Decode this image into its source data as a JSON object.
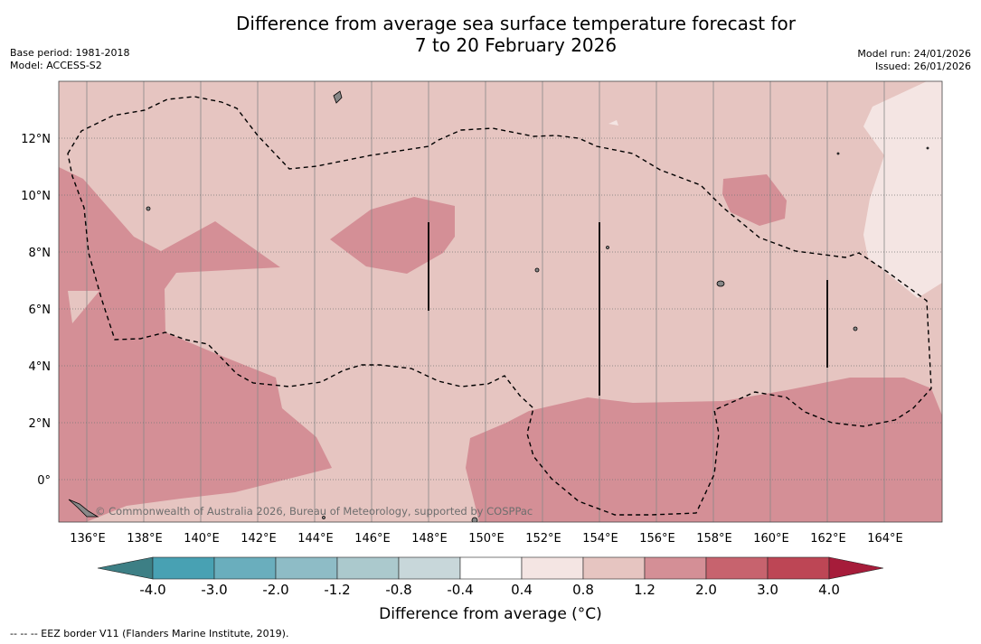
{
  "header": {
    "title_line1": "Difference from average sea surface temperature forecast for",
    "title_line2": "7 to 20 February 2026",
    "base_period": "Base period: 1981-2018",
    "model": "Model: ACCESS-S2",
    "model_run": "Model run: 24/01/2026",
    "issued": "Issued: 26/01/2026"
  },
  "map": {
    "lat_labels": [
      "12°N",
      "10°N",
      "8°N",
      "6°N",
      "4°N",
      "2°N",
      "0°"
    ],
    "lon_labels": [
      "136°E",
      "138°E",
      "140°E",
      "142°E",
      "144°E",
      "146°E",
      "148°E",
      "150°E",
      "152°E",
      "154°E",
      "156°E",
      "158°E",
      "160°E",
      "162°E",
      "164°E"
    ],
    "credit": "© Commonwealth of Australia 2026, Bureau of Meteorology, supported by COSPPac"
  },
  "colorbar": {
    "tick_labels": [
      "-4.0",
      "-3.0",
      "-2.0",
      "-1.2",
      "-0.8",
      "-0.4",
      "0.4",
      "0.8",
      "1.2",
      "2.0",
      "3.0",
      "4.0"
    ],
    "colors": [
      "#48a1b3",
      "#6aaebd",
      "#8ebcc6",
      "#abc9cd",
      "#c8d7da",
      "#ffffff",
      "#f4e5e3",
      "#e6c5c1",
      "#d48f96",
      "#c7636e",
      "#bd4655"
    ],
    "extend_low_color": "#3d7f85",
    "extend_high_color": "#a61c3a",
    "title": "Difference from average (°C)"
  },
  "legend": {
    "eez": "--  --  -- EEZ border V11 (Flanders Marine Institute, 2019)."
  }
}
